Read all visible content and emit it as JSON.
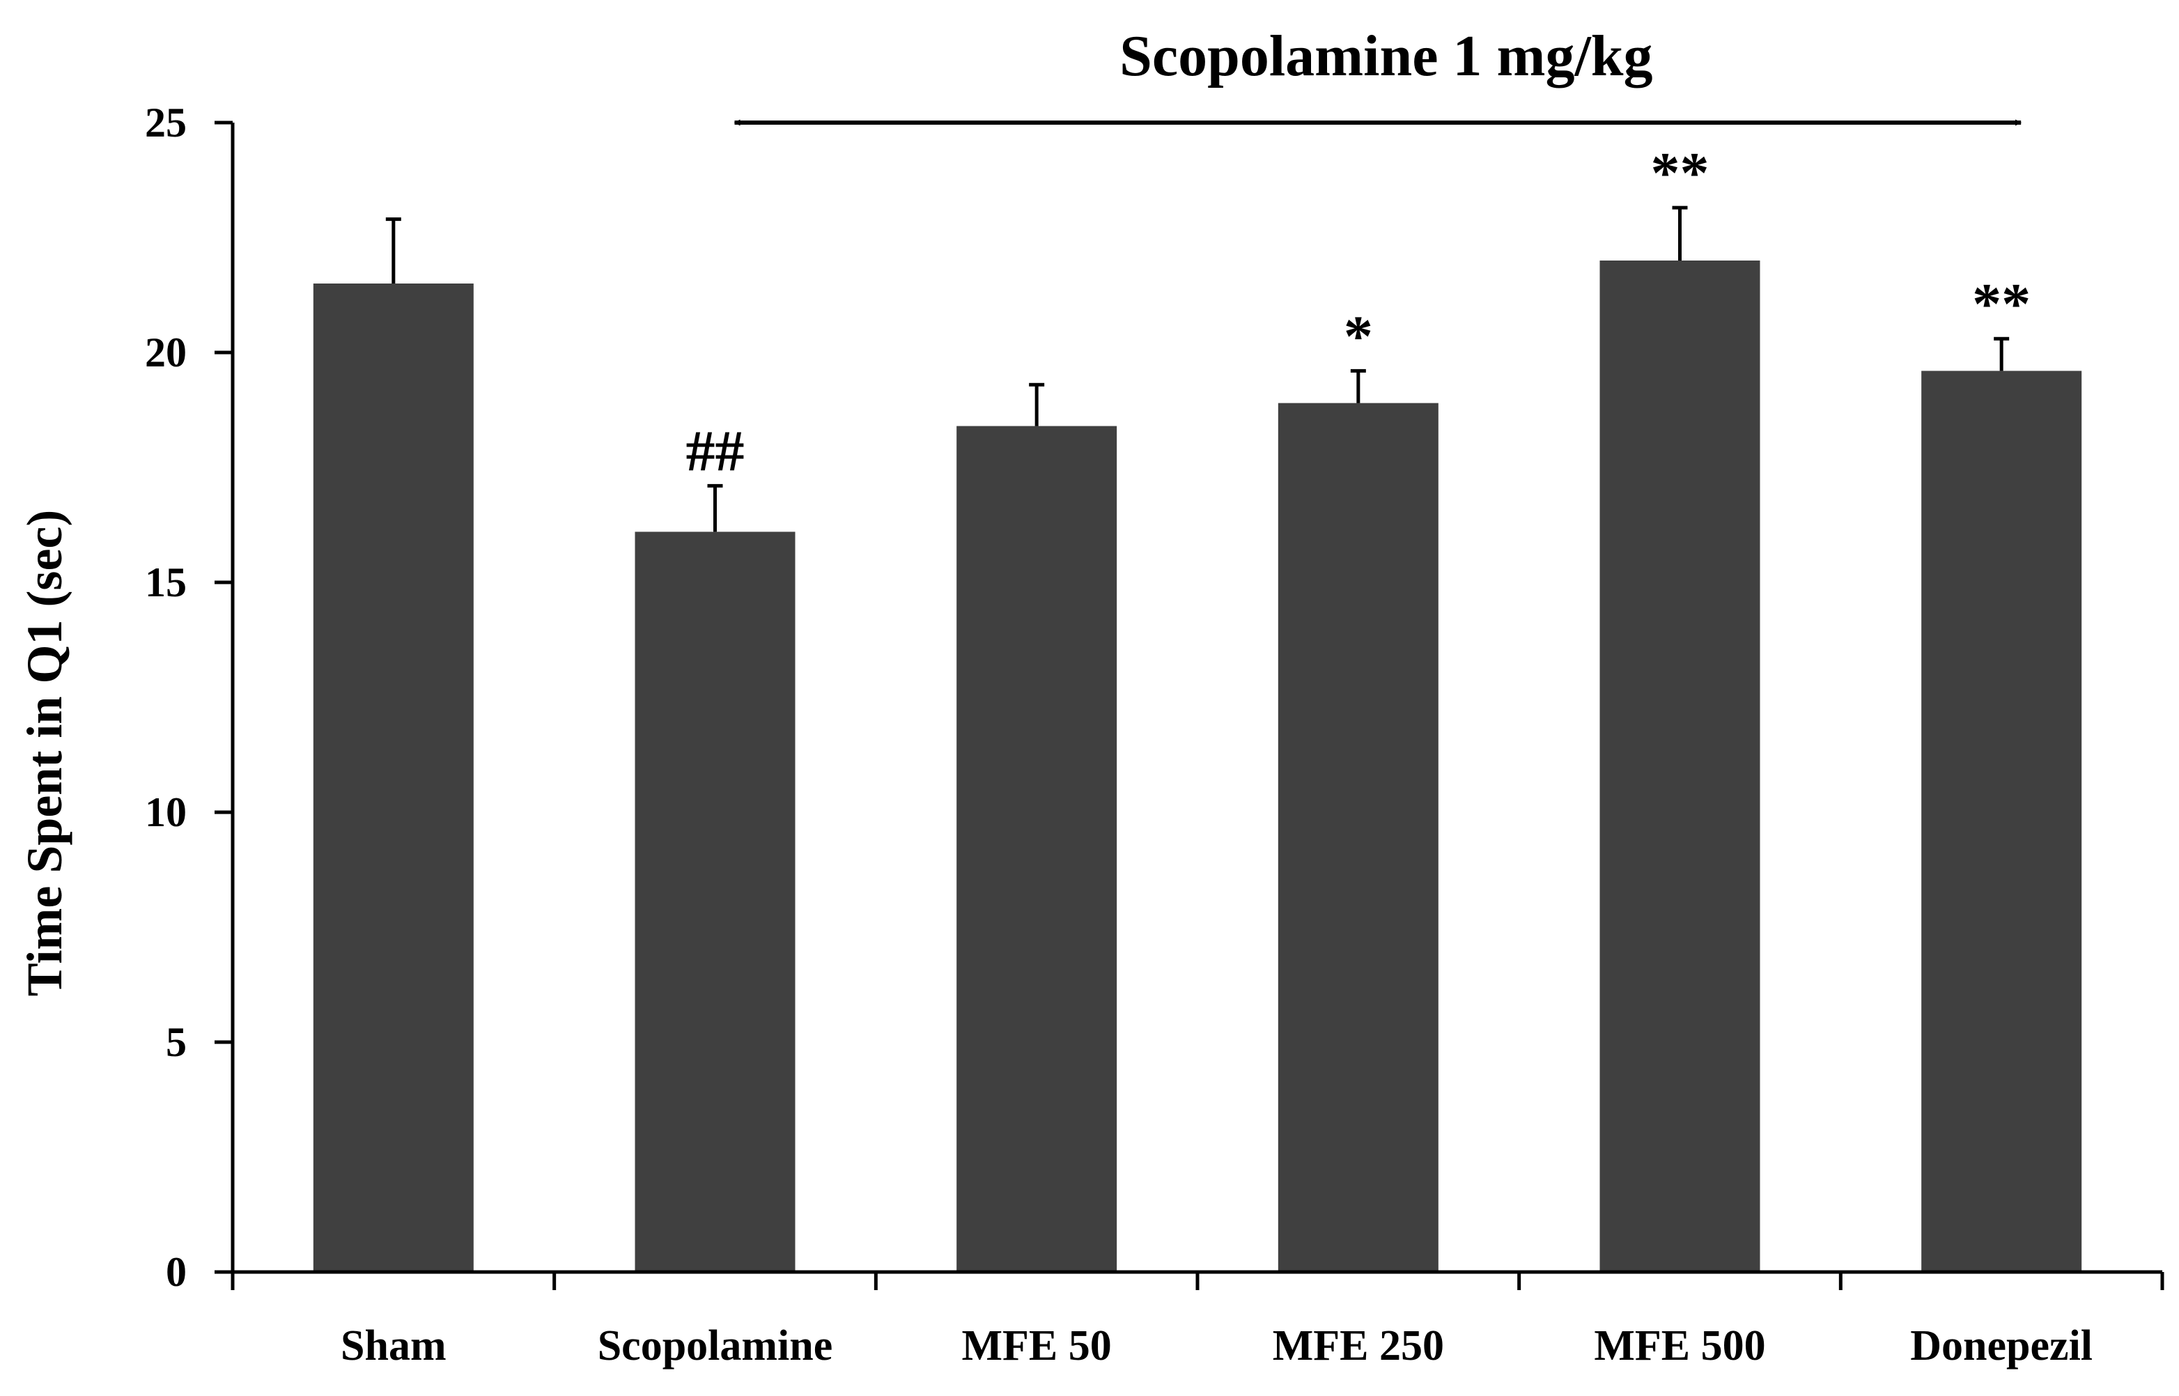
{
  "chart_data": {
    "type": "bar",
    "title": "",
    "xlabel": "",
    "ylabel": "Time Spent in Q1 (sec)",
    "ylim": [
      0,
      25
    ],
    "yticks": [
      0,
      5,
      10,
      15,
      20,
      25
    ],
    "ytick_labels": [
      "0",
      "5",
      "10",
      "15",
      "20",
      "25"
    ],
    "grid": false,
    "legend": "none",
    "bar_color": "#404040",
    "categories": [
      "Sham",
      "Scopolamine",
      "MFE 50",
      "MFE 250",
      "MFE 500",
      "Donepezil"
    ],
    "values": [
      21.5,
      16.1,
      18.4,
      18.9,
      22.0,
      19.6
    ],
    "error": [
      1.4,
      1.0,
      0.9,
      0.7,
      1.15,
      0.7
    ],
    "annotations": [
      "",
      "##",
      "",
      "*",
      "**",
      "**"
    ],
    "bracket": {
      "label": "Scopolamine 1 mg/kg",
      "from_category": "Scopolamine",
      "to_category": "Donepezil"
    }
  }
}
